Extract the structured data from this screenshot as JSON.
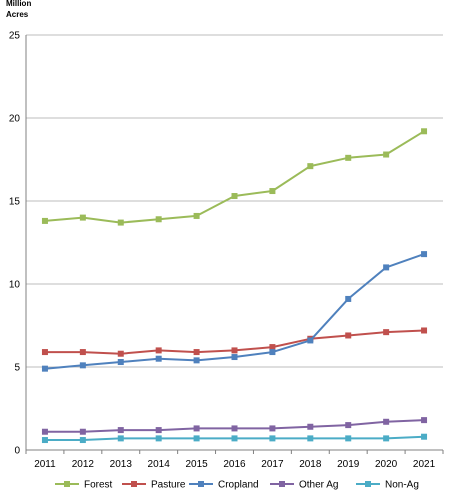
{
  "chart_data": {
    "type": "line",
    "ylabel_lines": [
      "Million",
      "Acres"
    ],
    "ylim": [
      0,
      25
    ],
    "yticks": [
      0,
      5,
      10,
      15,
      20,
      25
    ],
    "grid": "horizontal",
    "legend_position": "bottom",
    "x": [
      "2011",
      "2012",
      "2013",
      "2014",
      "2015",
      "2016",
      "2017",
      "2018",
      "2019",
      "2020",
      "2021"
    ],
    "series": [
      {
        "name": "Forest",
        "color": "#9bbb59",
        "values": [
          13.8,
          14.0,
          13.7,
          13.9,
          14.1,
          15.3,
          15.6,
          17.1,
          17.6,
          17.8,
          19.2
        ]
      },
      {
        "name": "Pasture",
        "color": "#c0504d",
        "values": [
          5.9,
          5.9,
          5.8,
          6.0,
          5.9,
          6.0,
          6.2,
          6.7,
          6.9,
          7.1,
          7.2
        ]
      },
      {
        "name": "Cropland",
        "color": "#4f81bd",
        "values": [
          4.9,
          5.1,
          5.3,
          5.5,
          5.4,
          5.6,
          5.9,
          6.6,
          9.1,
          11.0,
          11.8
        ]
      },
      {
        "name": "Other Ag",
        "color": "#8064a2",
        "values": [
          1.1,
          1.1,
          1.2,
          1.2,
          1.3,
          1.3,
          1.3,
          1.4,
          1.5,
          1.7,
          1.8
        ]
      },
      {
        "name": "Non-Ag",
        "color": "#4bacc6",
        "values": [
          0.6,
          0.6,
          0.7,
          0.7,
          0.7,
          0.7,
          0.7,
          0.7,
          0.7,
          0.7,
          0.8
        ]
      }
    ]
  }
}
